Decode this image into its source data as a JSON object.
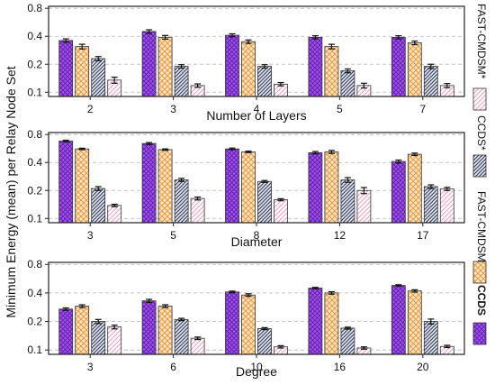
{
  "chart_data": [
    {
      "type": "bar",
      "xlabel": "Number of Layers",
      "ylabel": "",
      "ylim": [
        0.09,
        0.84
      ],
      "yscale": "log",
      "yticks": [
        "0.1",
        "0.2",
        "0.4",
        "0.8"
      ],
      "grid": "horizontal dashed",
      "categories": [
        "2",
        "3",
        "4",
        "5",
        "7"
      ],
      "series": [
        {
          "name": "CCDS",
          "values": [
            0.36,
            0.45,
            0.41,
            0.39,
            0.39
          ],
          "errors": [
            0.015,
            0.02,
            0.015,
            0.015,
            0.015
          ]
        },
        {
          "name": "FAST-CMDSM",
          "values": [
            0.31,
            0.39,
            0.35,
            0.31,
            0.34
          ],
          "errors": [
            0.018,
            0.018,
            0.015,
            0.018,
            0.015
          ]
        },
        {
          "name": "CCDS*",
          "values": [
            0.23,
            0.19,
            0.19,
            0.17,
            0.19
          ],
          "errors": [
            0.012,
            0.008,
            0.008,
            0.008,
            0.01
          ]
        },
        {
          "name": "FAST-CMDSM*",
          "values": [
            0.135,
            0.118,
            0.122,
            0.118,
            0.118
          ],
          "errors": [
            0.01,
            0.005,
            0.005,
            0.007,
            0.006
          ]
        }
      ]
    },
    {
      "type": "bar",
      "xlabel": "Diameter",
      "ylabel": "Minimum Energy (mean) per Relay Node Set",
      "ylim": [
        0.09,
        0.84
      ],
      "yscale": "log",
      "yticks": [
        "0.1",
        "0.2",
        "0.4",
        "0.8"
      ],
      "grid": "horizontal dashed",
      "categories": [
        "3",
        "5",
        "8",
        "12",
        "17"
      ],
      "series": [
        {
          "name": "CCDS",
          "values": [
            0.68,
            0.64,
            0.56,
            0.51,
            0.41
          ],
          "errors": [
            0.015,
            0.015,
            0.012,
            0.015,
            0.015
          ]
        },
        {
          "name": "FAST-CMDSM",
          "values": [
            0.56,
            0.55,
            0.52,
            0.52,
            0.49
          ],
          "errors": [
            0.01,
            0.01,
            0.01,
            0.02,
            0.015
          ]
        },
        {
          "name": "CCDS*",
          "values": [
            0.21,
            0.26,
            0.25,
            0.26,
            0.22
          ],
          "errors": [
            0.01,
            0.01,
            0.006,
            0.015,
            0.01
          ]
        },
        {
          "name": "FAST-CMDSM*",
          "values": [
            0.138,
            0.164,
            0.159,
            0.2,
            0.208
          ],
          "errors": [
            0.004,
            0.006,
            0.004,
            0.015,
            0.008
          ]
        }
      ]
    },
    {
      "type": "bar",
      "xlabel": "Degree",
      "ylabel": "",
      "ylim": [
        0.09,
        0.84
      ],
      "yscale": "log",
      "yticks": [
        "0.1",
        "0.2",
        "0.4",
        "0.8"
      ],
      "grid": "horizontal dashed",
      "categories": [
        "3",
        "6",
        "10",
        "16",
        "20"
      ],
      "series": [
        {
          "name": "CCDS",
          "values": [
            0.27,
            0.33,
            0.41,
            0.45,
            0.48
          ],
          "errors": [
            0.008,
            0.012,
            0.008,
            0.008,
            0.008
          ]
        },
        {
          "name": "FAST-CMDSM",
          "values": [
            0.29,
            0.29,
            0.38,
            0.4,
            0.42
          ],
          "errors": [
            0.01,
            0.01,
            0.012,
            0.012,
            0.012
          ]
        },
        {
          "name": "CCDS*",
          "values": [
            0.2,
            0.21,
            0.168,
            0.17,
            0.2
          ],
          "errors": [
            0.01,
            0.006,
            0.004,
            0.004,
            0.012
          ]
        },
        {
          "name": "FAST-CMDSM*",
          "values": [
            0.175,
            0.133,
            0.108,
            0.105,
            0.109
          ],
          "errors": [
            0.008,
            0.004,
            0.003,
            0.003,
            0.003
          ]
        }
      ]
    }
  ],
  "legend": {
    "placement": "right, vertical text",
    "items": [
      {
        "label": "FAST-CMDSM*",
        "series": "FAST-CMDSM*",
        "bold": false
      },
      {
        "label": "CCDS*",
        "series": "CCDS*",
        "bold": false
      },
      {
        "label": "FAST-CMDSM",
        "series": "FAST-CMDSM",
        "bold": false
      },
      {
        "label": "CCDS",
        "series": "CCDS",
        "bold": true
      }
    ]
  },
  "style": {
    "CCDS": {
      "fill": "#9b44f0",
      "pattern": "crosshatch"
    },
    "FAST-CMDSM": {
      "fill": "#f5d09a",
      "pattern": "diamond"
    },
    "CCDS*": {
      "fill": "#6a7290",
      "pattern": "diagonal"
    },
    "FAST-CMDSM*": {
      "fill": "#f3c7d7",
      "pattern": "diagonal-light"
    }
  }
}
